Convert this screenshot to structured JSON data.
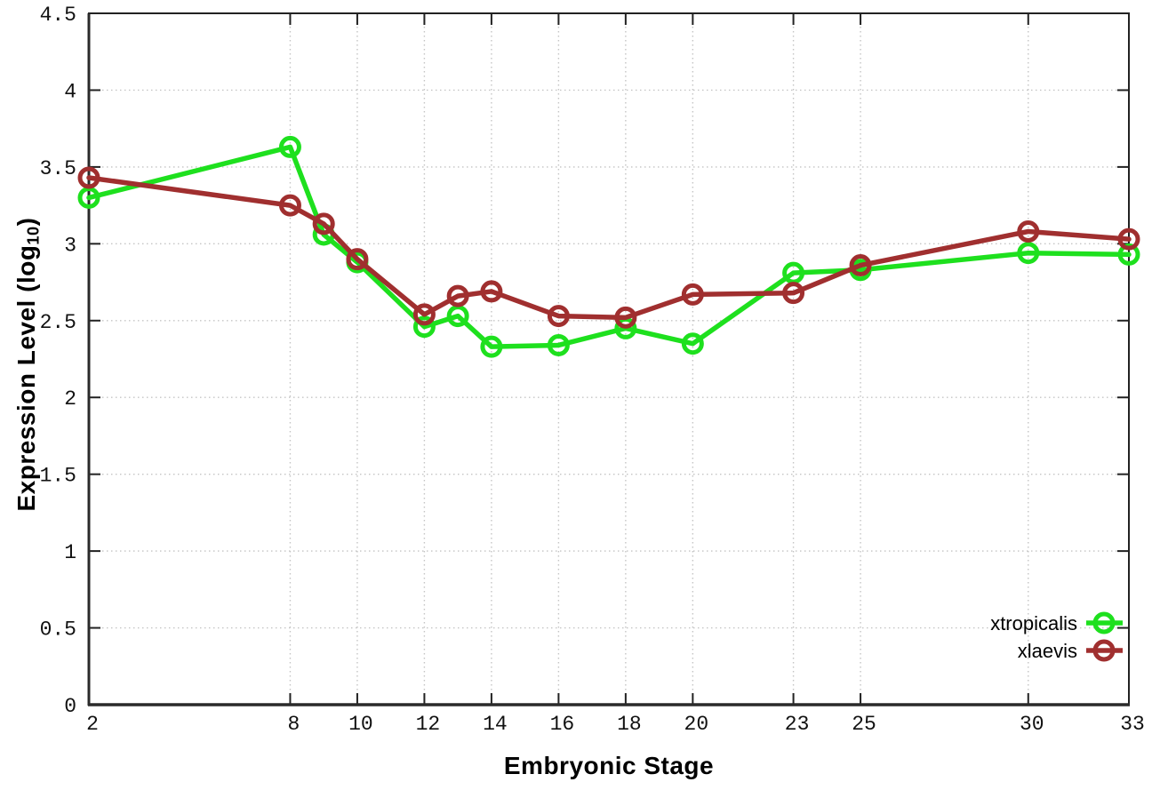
{
  "axes": {
    "xlabel": "Embryonic Stage",
    "ylabel_prefix": "Expression Level (log",
    "ylabel_sub": "10",
    "ylabel_suffix": ")"
  },
  "chart_data": {
    "type": "line",
    "title": "",
    "xlabel": "Embryonic Stage",
    "ylabel": "Expression Level (log10)",
    "x": [
      2,
      8,
      9,
      10,
      12,
      13,
      14,
      16,
      18,
      20,
      23,
      25,
      30,
      33
    ],
    "series": [
      {
        "name": "xtropicalis",
        "color": "#1ee01e",
        "values": [
          3.3,
          3.63,
          3.06,
          2.88,
          2.46,
          2.53,
          2.33,
          2.34,
          2.45,
          2.35,
          2.81,
          2.83,
          2.94,
          2.93
        ]
      },
      {
        "name": "xlaevis",
        "color": "#a02f2f",
        "values": [
          3.43,
          3.25,
          3.13,
          2.9,
          2.54,
          2.66,
          2.69,
          2.53,
          2.52,
          2.67,
          2.68,
          2.86,
          3.08,
          3.03
        ]
      }
    ],
    "x_ticks": [
      2,
      8,
      10,
      12,
      14,
      16,
      18,
      20,
      23,
      25,
      30,
      33
    ],
    "y_ticks": [
      0,
      0.5,
      1,
      1.5,
      2,
      2.5,
      3,
      3.5,
      4,
      4.5
    ],
    "xlim": [
      2,
      33
    ],
    "ylim": [
      0,
      4.5
    ],
    "grid": true,
    "legend_position": "bottom-right",
    "marker": "open-circle",
    "grid_color": "#c4c4c4",
    "axis_color": "#222222",
    "tick_label_color": "#111111"
  }
}
